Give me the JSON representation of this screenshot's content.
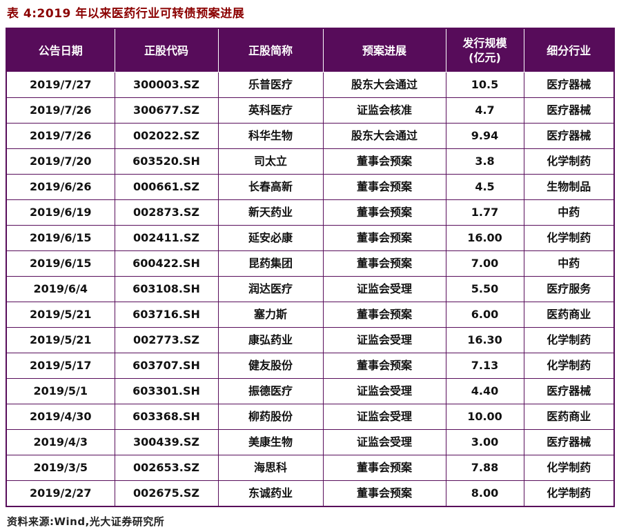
{
  "title": "表 4:2019 年以来医药行业可转债预案进展",
  "colors": {
    "header_bg": "#570c5a",
    "title_color": "#8b0000",
    "border": "#570c5a"
  },
  "table": {
    "columns": [
      {
        "label": "公告日期",
        "sublabel": ""
      },
      {
        "label": "正股代码",
        "sublabel": ""
      },
      {
        "label": "正股简称",
        "sublabel": ""
      },
      {
        "label": "预案进展",
        "sublabel": ""
      },
      {
        "label": "发行规模",
        "sublabel": "(亿元)"
      },
      {
        "label": "细分行业",
        "sublabel": ""
      }
    ],
    "rows": [
      [
        "2019/7/27",
        "300003.SZ",
        "乐普医疗",
        "股东大会通过",
        "10.5",
        "医疗器械"
      ],
      [
        "2019/7/26",
        "300677.SZ",
        "英科医疗",
        "证监会核准",
        "4.7",
        "医疗器械"
      ],
      [
        "2019/7/26",
        "002022.SZ",
        "科华生物",
        "股东大会通过",
        "9.94",
        "医疗器械"
      ],
      [
        "2019/7/20",
        "603520.SH",
        "司太立",
        "董事会预案",
        "3.8",
        "化学制药"
      ],
      [
        "2019/6/26",
        "000661.SZ",
        "长春高新",
        "董事会预案",
        "4.5",
        "生物制品"
      ],
      [
        "2019/6/19",
        "002873.SZ",
        "新天药业",
        "董事会预案",
        "1.77",
        "中药"
      ],
      [
        "2019/6/15",
        "002411.SZ",
        "延安必康",
        "董事会预案",
        "16.00",
        "化学制药"
      ],
      [
        "2019/6/15",
        "600422.SH",
        "昆药集团",
        "董事会预案",
        "7.00",
        "中药"
      ],
      [
        "2019/6/4",
        "603108.SH",
        "润达医疗",
        "证监会受理",
        "5.50",
        "医疗服务"
      ],
      [
        "2019/5/21",
        "603716.SH",
        "塞力斯",
        "董事会预案",
        "6.00",
        "医药商业"
      ],
      [
        "2019/5/21",
        "002773.SZ",
        "康弘药业",
        "证监会受理",
        "16.30",
        "化学制药"
      ],
      [
        "2019/5/17",
        "603707.SH",
        "健友股份",
        "董事会预案",
        "7.13",
        "化学制药"
      ],
      [
        "2019/5/1",
        "603301.SH",
        "振德医疗",
        "证监会受理",
        "4.40",
        "医疗器械"
      ],
      [
        "2019/4/30",
        "603368.SH",
        "柳药股份",
        "证监会受理",
        "10.00",
        "医药商业"
      ],
      [
        "2019/4/3",
        "300439.SZ",
        "美康生物",
        "证监会受理",
        "3.00",
        "医疗器械"
      ],
      [
        "2019/3/5",
        "002653.SZ",
        "海思科",
        "董事会预案",
        "7.88",
        "化学制药"
      ],
      [
        "2019/2/27",
        "002675.SZ",
        "东诚药业",
        "董事会预案",
        "8.00",
        "化学制药"
      ]
    ]
  },
  "footer": "资料来源:Wind,光大证券研究所"
}
